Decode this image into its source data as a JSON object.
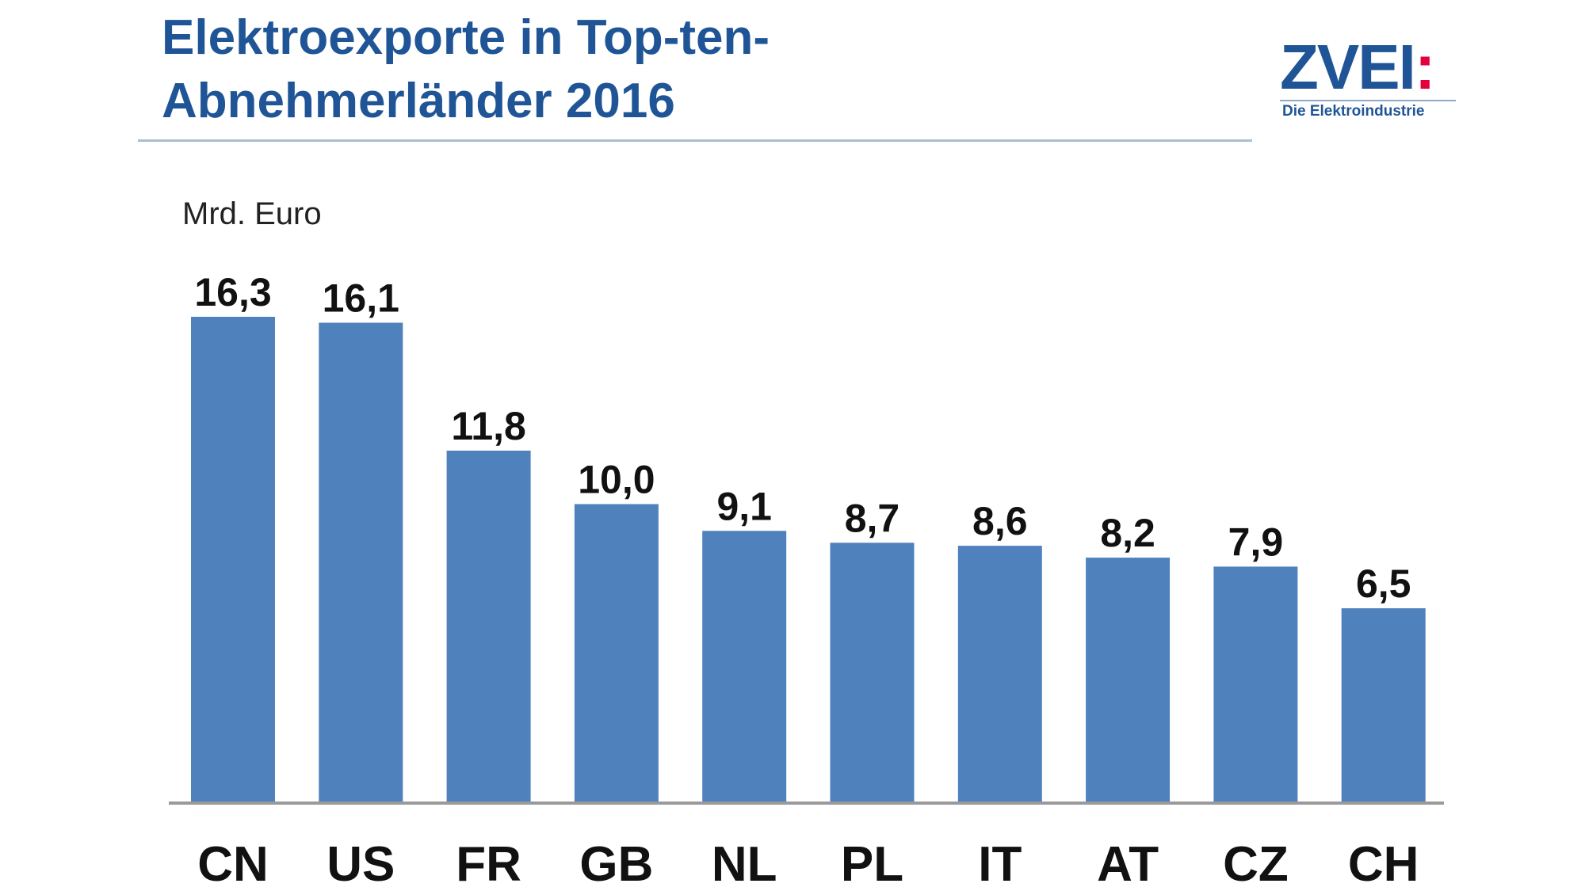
{
  "header": {
    "title_line1": "Elektroexporte in Top-ten-",
    "title_line2": "Abnehmerländer 2016"
  },
  "logo": {
    "mark": "ZVEI:",
    "tagline": "Die Elektroindustrie",
    "colors": {
      "primary": "#1f5596",
      "accent": "#e2003d"
    }
  },
  "chart_data": {
    "type": "bar",
    "title": "Elektroexporte in Top-ten-Abnehmerländer 2016",
    "ylabel": "Mrd. Euro",
    "xlabel": "",
    "categories": [
      "CN",
      "US",
      "FR",
      "GB",
      "NL",
      "PL",
      "IT",
      "AT",
      "CZ",
      "CH"
    ],
    "values": [
      16.3,
      16.1,
      11.8,
      10.0,
      9.1,
      8.7,
      8.6,
      8.2,
      7.9,
      6.5
    ],
    "value_labels": [
      "16,3",
      "16,1",
      "11,8",
      "10,0",
      "9,1",
      "8,7",
      "8,6",
      "8,2",
      "7,9",
      "6,5"
    ],
    "ylim": [
      0,
      16.3
    ],
    "grid": false,
    "legend": "none",
    "colors": {
      "bar": "#4f81bd",
      "axis": "#9a9a9a"
    }
  }
}
